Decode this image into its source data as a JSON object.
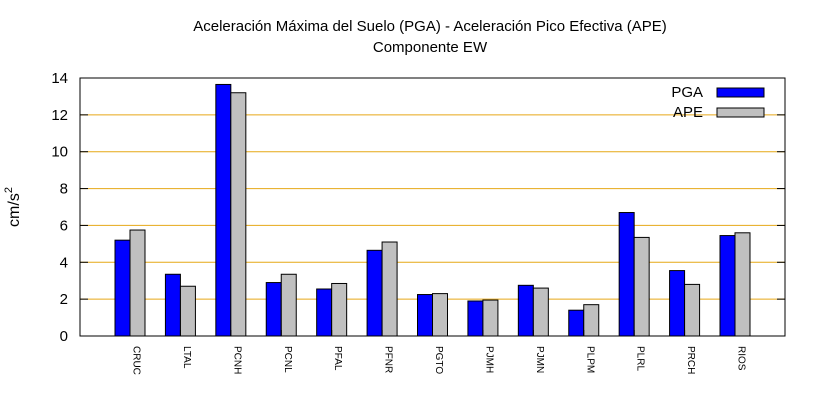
{
  "chart_data": {
    "type": "bar",
    "title": "Aceleración Máxima del Suelo (PGA) -  Aceleración Pico Efectiva (APE)",
    "subtitle": "Componente EW",
    "ylabel": "cm/s",
    "ylabel_sup": "2",
    "xlabel": "",
    "ylim": [
      0,
      14
    ],
    "yticks": [
      0,
      2,
      4,
      6,
      8,
      10,
      12,
      14
    ],
    "grid": true,
    "legend_position": "top-right",
    "categories": [
      "CRUC",
      "LTAL",
      "PCNH",
      "PCNL",
      "PFAL",
      "PFNR",
      "PGTO",
      "PJMH",
      "PJMN",
      "PLPM",
      "PLRL",
      "PRCH",
      "RIOS"
    ],
    "series": [
      {
        "name": "PGA",
        "color": "#0000ff",
        "values": [
          5.2,
          3.35,
          13.65,
          2.9,
          2.55,
          4.65,
          2.25,
          1.9,
          2.75,
          1.4,
          6.7,
          3.55,
          5.45
        ]
      },
      {
        "name": "APE",
        "color": "#c0c0c0",
        "values": [
          5.75,
          2.7,
          13.2,
          3.35,
          2.85,
          5.1,
          2.3,
          1.95,
          2.6,
          1.7,
          5.35,
          2.8,
          5.6
        ]
      }
    ],
    "grid_color": "#e6a817"
  }
}
